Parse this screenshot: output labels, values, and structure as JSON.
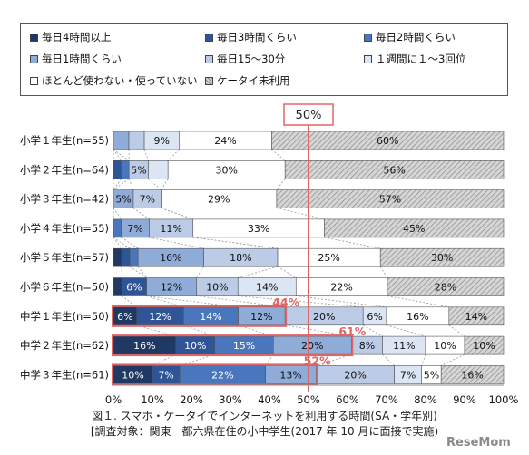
{
  "legend": [
    {
      "label": "毎日4時間以上",
      "color": "#1f3864"
    },
    {
      "label": "毎日3時間くらい",
      "color": "#2f5597"
    },
    {
      "label": "毎日2時間くらい",
      "color": "#4a76bd"
    },
    {
      "label": "毎日1時間くらい",
      "color": "#8fabd8"
    },
    {
      "label": "毎日15〜30分",
      "color": "#bccbe6"
    },
    {
      "label": "１週間に１〜3回位",
      "color": "#dce5f3"
    },
    {
      "label": "ほとんど使わない・使っていない",
      "color": "#ffffff"
    },
    {
      "label": "ケータイ未利用",
      "color": "#bfbfbf"
    }
  ],
  "fifty_label": "50%",
  "caption_line1": "図１. スマホ・ケータイでインターネットを利用する時間(SA・学年別)",
  "caption_line2": "[調査対象：関東一都六県在住の小中学生(2017 年 10 月に面接で実施)",
  "watermark": "ReseMom",
  "chart_data": {
    "type": "bar",
    "orientation": "horizontal",
    "stacked": "100%",
    "categories": [
      "小学１年生(n=55)",
      "小学２年生(n=64)",
      "小学３年生(n=42)",
      "小学４年生(n=55)",
      "小学５年生(n=57)",
      "小学６年生(n=50)",
      "中学１年生(n=50)",
      "中学２年生(n=62)",
      "中学３年生(n=61)"
    ],
    "series": [
      {
        "name": "毎日4時間以上",
        "values": [
          0,
          0,
          0,
          0,
          2,
          2,
          6,
          16,
          10
        ]
      },
      {
        "name": "毎日3時間くらい",
        "values": [
          0,
          2,
          0,
          0,
          2,
          6,
          12,
          10,
          7
        ]
      },
      {
        "name": "毎日2時間くらい",
        "values": [
          0,
          2,
          0,
          2,
          2,
          0,
          14,
          15,
          22
        ]
      },
      {
        "name": "毎日1時間くらい",
        "values": [
          4,
          0,
          5,
          7,
          16,
          12,
          12,
          20,
          13
        ]
      },
      {
        "name": "毎日15〜30分",
        "values": [
          4,
          5,
          7,
          11,
          18,
          10,
          20,
          8,
          20
        ]
      },
      {
        "name": "１週間に１〜3回位",
        "values": [
          9,
          5,
          0,
          0,
          0,
          14,
          6,
          11,
          7
        ]
      },
      {
        "name": "ほとんど使わない・使っていない",
        "values": [
          24,
          30,
          29,
          33,
          25,
          22,
          16,
          10,
          5
        ]
      },
      {
        "name": "ケータイ未利用",
        "values": [
          60,
          56,
          57,
          45,
          30,
          28,
          14,
          10,
          16
        ]
      }
    ],
    "data_labels": [
      [
        "",
        "",
        "",
        "",
        "",
        "9%",
        "24%",
        "60%"
      ],
      [
        "",
        "",
        "",
        "",
        "5%",
        "",
        "30%",
        "56%"
      ],
      [
        "",
        "",
        "",
        "5%",
        "7%",
        "",
        "29%",
        "57%"
      ],
      [
        "",
        "",
        "",
        "7%",
        "11%",
        "",
        "33%",
        "45%"
      ],
      [
        "",
        "",
        "",
        "16%",
        "18%",
        "",
        "25%",
        "30%"
      ],
      [
        "",
        "6%",
        "",
        "12%",
        "10%",
        "14%",
        "22%",
        "28%"
      ],
      [
        "6%",
        "12%",
        "14%",
        "12%",
        "20%",
        "6%",
        "16%",
        "14%"
      ],
      [
        "16%",
        "10%",
        "15%",
        "20%",
        "8%",
        "11%",
        "10%",
        "10%"
      ],
      [
        "10%",
        "7%",
        "22%",
        "13%",
        "20%",
        "7%",
        "5%",
        "16%"
      ]
    ],
    "highlight_totals": [
      {
        "category": "中学１年生(n=50)",
        "label": "44%"
      },
      {
        "category": "中学２年生(n=62)",
        "label": "61%"
      },
      {
        "category": "中学３年生(n=61)",
        "label": "52%"
      }
    ],
    "x_ticks": [
      "0%",
      "10%",
      "20%",
      "30%",
      "40%",
      "50%",
      "60%",
      "70%",
      "80%",
      "90%",
      "100%"
    ],
    "xlim": [
      0,
      100
    ],
    "reference_line": 50,
    "legend_position": "top",
    "grid": false,
    "colors": {
      "highlight": "#e06666",
      "hatch": "#bfbfbf",
      "axis": "#888888"
    }
  }
}
